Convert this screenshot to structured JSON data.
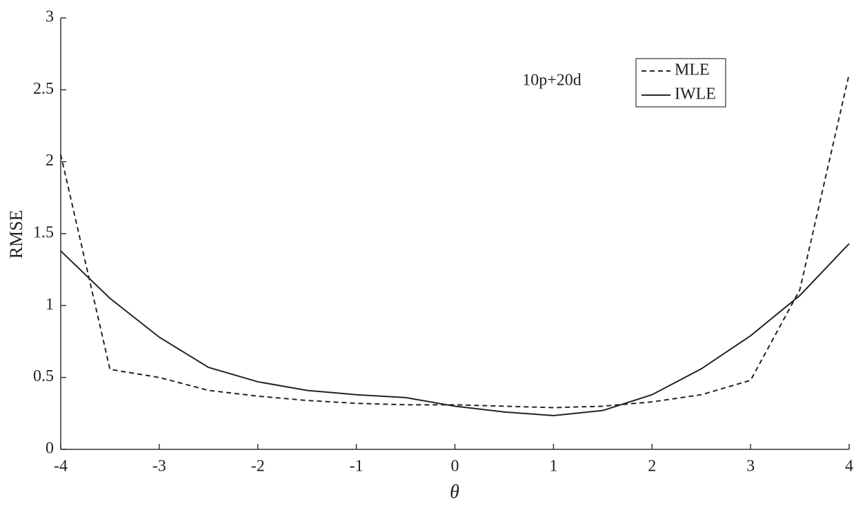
{
  "chart_data": {
    "type": "line",
    "annotation": "10p+20d",
    "x_label": "θ",
    "y_label": "RMSE",
    "x": [
      -4,
      -3.5,
      -3,
      -2.5,
      -2,
      -1.5,
      -1,
      -0.5,
      0,
      0.5,
      1,
      1.5,
      2,
      2.5,
      3,
      3.5,
      4
    ],
    "series": [
      {
        "name": "MLE",
        "color": "#222222",
        "linestyle": "dashed",
        "values": [
          2.05,
          0.556,
          0.5,
          0.41,
          0.37,
          0.34,
          0.32,
          0.31,
          0.31,
          0.3,
          0.29,
          0.3,
          0.33,
          0.38,
          0.48,
          1.11,
          2.61
        ]
      },
      {
        "name": "IWLE",
        "color": "#222222",
        "linestyle": "solid",
        "values": [
          1.38,
          1.05,
          0.78,
          0.57,
          0.47,
          0.41,
          0.38,
          0.36,
          0.3,
          0.26,
          0.235,
          0.27,
          0.38,
          0.56,
          0.79,
          1.07,
          1.43
        ]
      }
    ],
    "xlim": [
      -4,
      4
    ],
    "xticks": [
      -4,
      -3,
      -2,
      -1,
      0,
      1,
      2,
      3,
      4
    ],
    "ylim": [
      0,
      3
    ],
    "yticks": [
      0,
      0.5,
      1,
      1.5,
      2,
      2.5,
      3
    ],
    "legend": "top-right"
  }
}
